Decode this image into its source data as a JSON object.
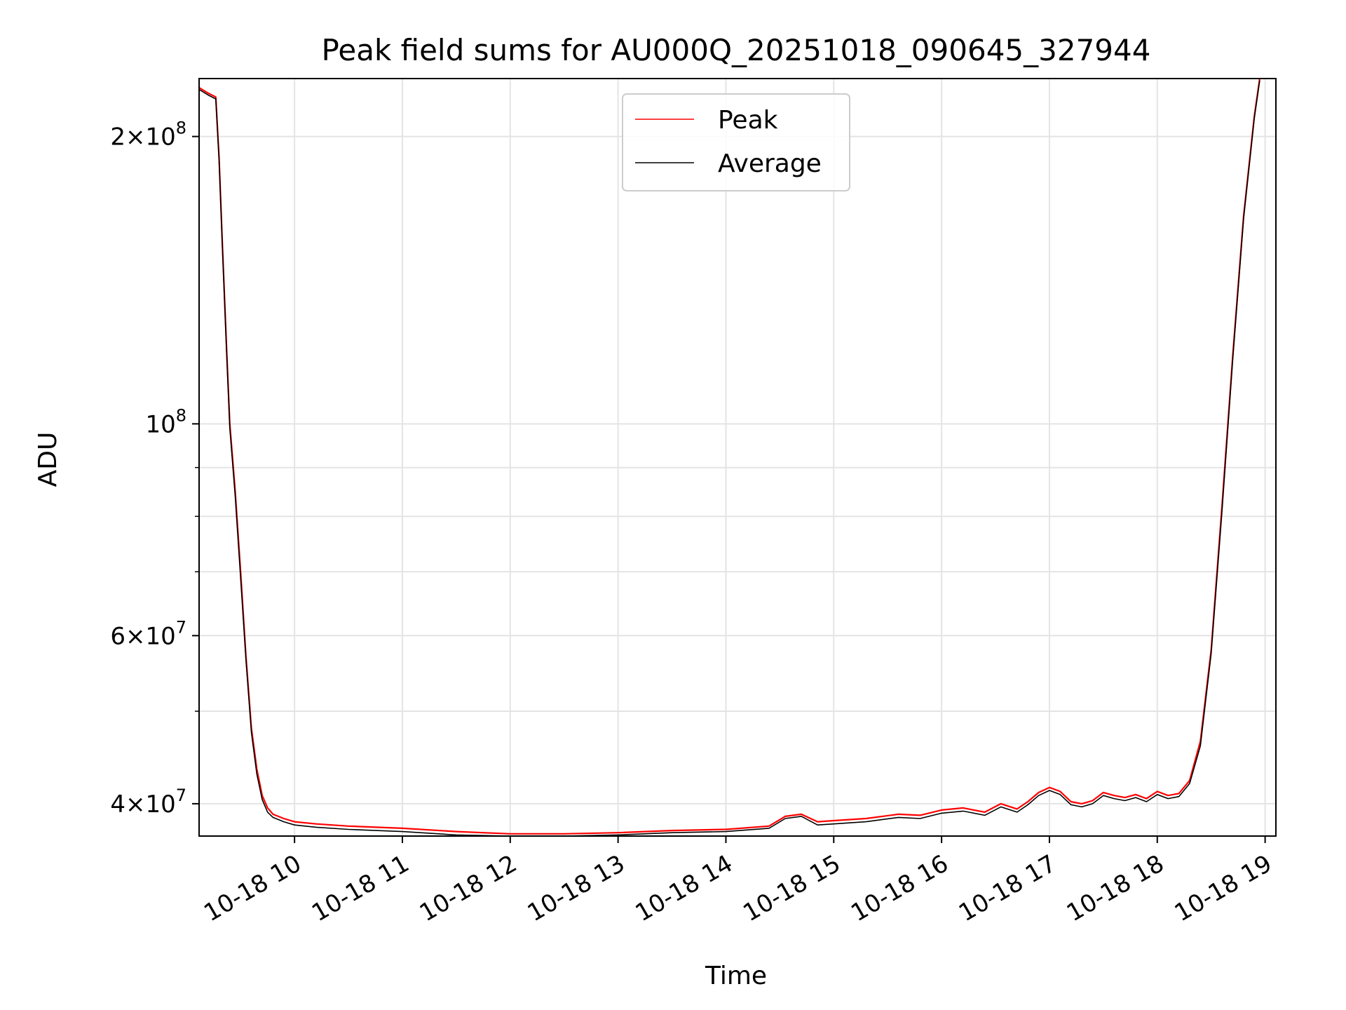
{
  "chart_data": {
    "type": "line",
    "title": "Peak field sums for AU000Q_20251018_090645_327944",
    "xlabel": "Time",
    "ylabel": "ADU",
    "yscale": "log",
    "xlim": [
      9.115,
      19.1
    ],
    "ylim": [
      37000000,
      230000000
    ],
    "grid": true,
    "legend_position": "top-center",
    "x_ticks": [
      {
        "value": 10,
        "label": "10-18 10"
      },
      {
        "value": 11,
        "label": "10-18 11"
      },
      {
        "value": 12,
        "label": "10-18 12"
      },
      {
        "value": 13,
        "label": "10-18 13"
      },
      {
        "value": 14,
        "label": "10-18 14"
      },
      {
        "value": 15,
        "label": "10-18 15"
      },
      {
        "value": 16,
        "label": "10-18 16"
      },
      {
        "value": 17,
        "label": "10-18 17"
      },
      {
        "value": 18,
        "label": "10-18 18"
      },
      {
        "value": 19,
        "label": "10-18 19"
      }
    ],
    "y_major_ticks": [
      {
        "value": 40000000,
        "base": "4×10",
        "exp": "7"
      },
      {
        "value": 60000000,
        "base": "6×10",
        "exp": "7"
      },
      {
        "value": 100000000,
        "base": "10",
        "exp": "8"
      },
      {
        "value": 200000000,
        "base": "2×10",
        "exp": "8"
      }
    ],
    "y_minor_ticks": [
      50000000,
      70000000,
      80000000,
      90000000
    ],
    "series": [
      {
        "name": "Peak",
        "color": "#ff0000",
        "x": [
          9.115,
          9.2,
          9.27,
          9.3,
          9.33,
          9.37,
          9.4,
          9.45,
          9.5,
          9.55,
          9.6,
          9.65,
          9.7,
          9.75,
          9.8,
          9.9,
          10.0,
          10.2,
          10.5,
          11.0,
          11.5,
          12.0,
          12.5,
          13.0,
          13.5,
          14.0,
          14.4,
          14.55,
          14.7,
          14.85,
          15.0,
          15.3,
          15.6,
          15.8,
          16.0,
          16.2,
          16.4,
          16.55,
          16.7,
          16.8,
          16.9,
          17.0,
          17.1,
          17.2,
          17.3,
          17.4,
          17.5,
          17.6,
          17.7,
          17.8,
          17.9,
          18.0,
          18.1,
          18.2,
          18.3,
          18.4,
          18.5,
          18.6,
          18.7,
          18.8,
          18.9,
          18.95
        ],
        "y": [
          225000000,
          222000000,
          220000000,
          190000000,
          155000000,
          120000000,
          100000000,
          85000000,
          70000000,
          57000000,
          48000000,
          43500000,
          40800000,
          39600000,
          39000000,
          38600000,
          38300000,
          38100000,
          37900000,
          37700000,
          37400000,
          37200000,
          37200000,
          37300000,
          37500000,
          37600000,
          37900000,
          38800000,
          39000000,
          38300000,
          38400000,
          38600000,
          39000000,
          38900000,
          39400000,
          39600000,
          39200000,
          40000000,
          39500000,
          40200000,
          41100000,
          41600000,
          41200000,
          40200000,
          40000000,
          40300000,
          41100000,
          40800000,
          40600000,
          40900000,
          40500000,
          41200000,
          40800000,
          41000000,
          42300000,
          46500000,
          58000000,
          82000000,
          118000000,
          165000000,
          210000000,
          230000000
        ]
      },
      {
        "name": "Average",
        "color": "#000000",
        "x": [
          9.115,
          9.2,
          9.27,
          9.3,
          9.33,
          9.37,
          9.4,
          9.45,
          9.5,
          9.55,
          9.6,
          9.65,
          9.7,
          9.75,
          9.8,
          9.9,
          10.0,
          10.2,
          10.5,
          11.0,
          11.5,
          12.0,
          12.5,
          13.0,
          13.5,
          14.0,
          14.4,
          14.55,
          14.7,
          14.85,
          15.0,
          15.3,
          15.6,
          15.8,
          16.0,
          16.2,
          16.4,
          16.55,
          16.7,
          16.8,
          16.9,
          17.0,
          17.1,
          17.2,
          17.3,
          17.4,
          17.5,
          17.6,
          17.7,
          17.8,
          17.9,
          18.0,
          18.1,
          18.2,
          18.3,
          18.4,
          18.5,
          18.6,
          18.7,
          18.8,
          18.9,
          18.95
        ],
        "y": [
          224000000,
          221000000,
          219000000,
          189000000,
          154000000,
          119000000,
          99000000,
          84000000,
          69000000,
          56500000,
          47500000,
          43000000,
          40400000,
          39200000,
          38700000,
          38300000,
          38000000,
          37800000,
          37600000,
          37400000,
          37100000,
          37000000,
          37000000,
          37100000,
          37300000,
          37400000,
          37700000,
          38600000,
          38800000,
          38000000,
          38100000,
          38300000,
          38700000,
          38600000,
          39100000,
          39300000,
          38900000,
          39700000,
          39200000,
          39900000,
          40800000,
          41300000,
          40900000,
          39900000,
          39700000,
          40000000,
          40800000,
          40500000,
          40300000,
          40600000,
          40200000,
          40900000,
          40500000,
          40700000,
          42000000,
          46000000,
          57500000,
          81000000,
          117000000,
          164000000,
          209000000,
          229000000
        ]
      }
    ]
  }
}
